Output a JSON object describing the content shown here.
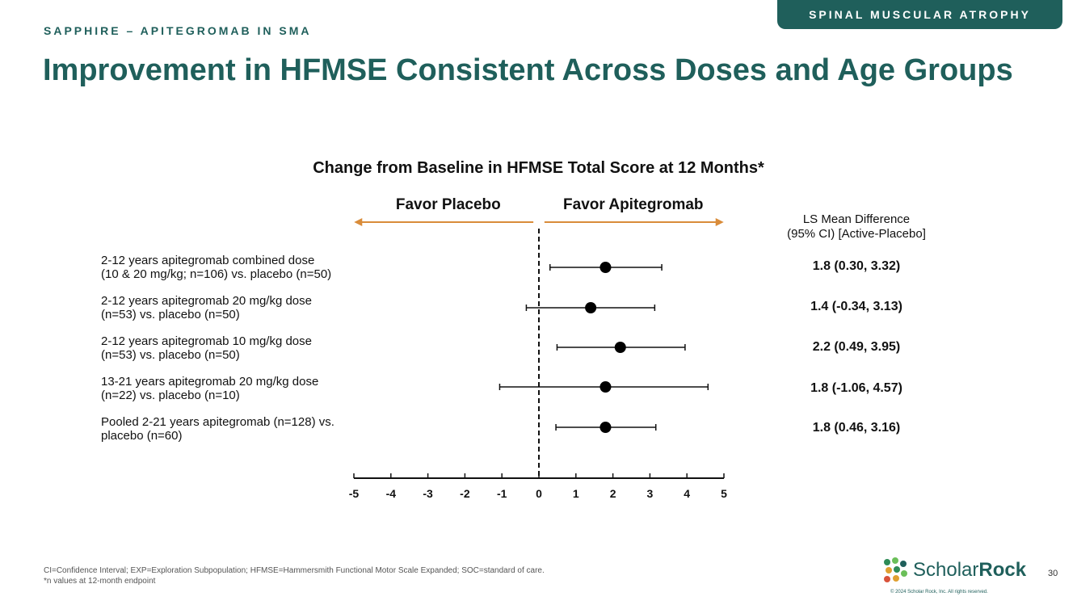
{
  "header": {
    "tag": "SPINAL MUSCULAR ATROPHY",
    "eyebrow": "SAPPHIRE – APITEGROMAB IN SMA",
    "title": "Improvement in HFMSE Consistent Across Doses and Age Groups"
  },
  "colors": {
    "brand": "#1f5f5b",
    "arrow": "#d98c3a"
  },
  "chart_data": {
    "type": "scatter",
    "title": "Change from Baseline in HFMSE Total Score at 12 Months*",
    "favor_left": "Favor Placebo",
    "favor_right": "Favor Apitegromab",
    "xlim": [
      -5,
      5
    ],
    "x_ticks": [
      "-5",
      "-4",
      "-3",
      "-2",
      "-1",
      "0",
      "1",
      "2",
      "3",
      "4",
      "5"
    ],
    "reference_line": 0,
    "ci_header_line1": "LS Mean Difference",
    "ci_header_line2": "(95% CI) [Active-Placebo]",
    "rows": [
      {
        "label_line1": "2-12 years apitegromab combined dose",
        "label_line2": "(10 & 20 mg/kg; n=106) vs. placebo (n=50)",
        "estimate": 1.8,
        "lower": 0.3,
        "upper": 3.32,
        "ci_text": "1.8 (0.30, 3.32)"
      },
      {
        "label_line1": "2-12 years apitegromab 20 mg/kg dose",
        "label_line2": "(n=53) vs. placebo (n=50)",
        "estimate": 1.4,
        "lower": -0.34,
        "upper": 3.13,
        "ci_text": "1.4 (-0.34, 3.13)"
      },
      {
        "label_line1": "2-12 years apitegromab 10 mg/kg dose",
        "label_line2": "(n=53) vs. placebo (n=50)",
        "estimate": 2.2,
        "lower": 0.49,
        "upper": 3.95,
        "ci_text": "2.2 (0.49, 3.95)"
      },
      {
        "label_line1": "13-21 years apitegromab 20 mg/kg dose",
        "label_line2": "(n=22) vs. placebo (n=10)",
        "estimate": 1.8,
        "lower": -1.06,
        "upper": 4.57,
        "ci_text": "1.8 (-1.06, 4.57)"
      },
      {
        "label_line1": "Pooled 2-21 years apitegromab (n=128) vs.",
        "label_line2": "placebo (n=60)",
        "estimate": 1.8,
        "lower": 0.46,
        "upper": 3.16,
        "ci_text": "1.8 (0.46, 3.16)"
      }
    ]
  },
  "footer": {
    "note1": "CI=Confidence Interval; EXP=Exploration Subpopulation; HFMSE=Hammersmith Functional Motor Scale Expanded; SOC=standard of care.",
    "note2": "*n values at 12-month endpoint",
    "logo_light": "Scholar",
    "logo_bold": "Rock",
    "copyright": "© 2024 Scholar Rock, Inc. All rights reserved.",
    "page_number": "30"
  }
}
